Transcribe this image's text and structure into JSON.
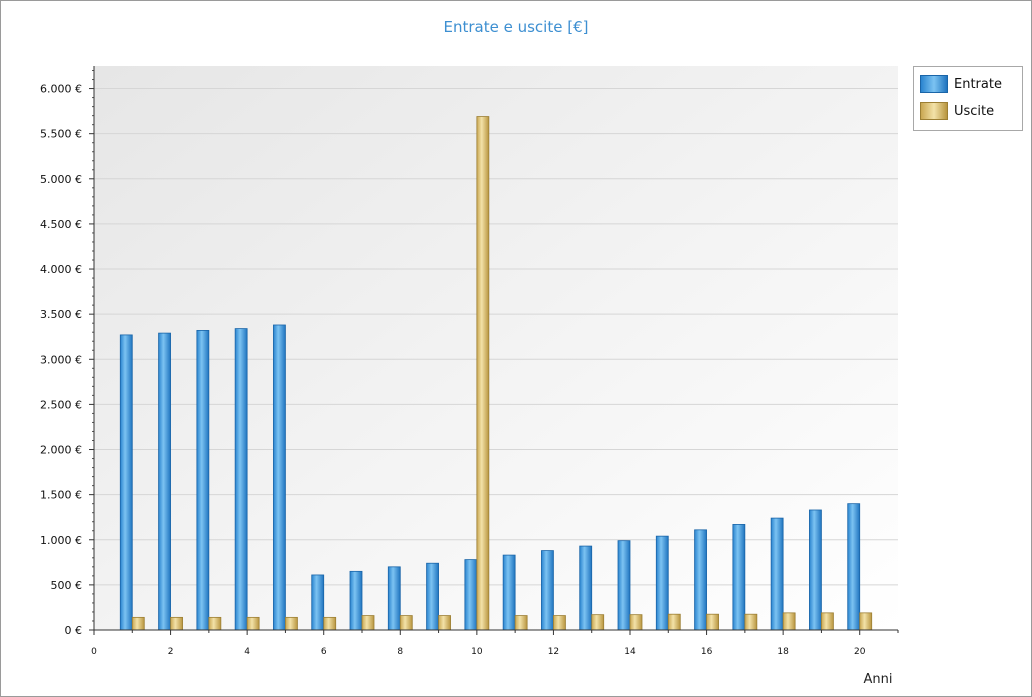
{
  "chart_data": {
    "type": "bar",
    "title": "Entrate e uscite [€]",
    "xlabel": "Anni",
    "ylabel": "",
    "x": [
      1,
      2,
      3,
      4,
      5,
      6,
      7,
      8,
      9,
      10,
      11,
      12,
      13,
      14,
      15,
      16,
      17,
      18,
      19,
      20
    ],
    "xlim": [
      0,
      21
    ],
    "ylim": [
      0,
      6250
    ],
    "x_ticks": [
      0,
      2,
      4,
      6,
      8,
      10,
      12,
      14,
      16,
      18,
      20
    ],
    "y_ticks": [
      0,
      500,
      1000,
      1500,
      2000,
      2500,
      3000,
      3500,
      4000,
      4500,
      5000,
      5500,
      6000
    ],
    "y_tick_labels": [
      "0 €",
      "500 €",
      "1.000 €",
      "1.500 €",
      "2.000 €",
      "2.500 €",
      "3.000 €",
      "3.500 €",
      "4.000 €",
      "4.500 €",
      "5.000 €",
      "5.500 €",
      "6.000 €"
    ],
    "grid": true,
    "legend_position": "top-right",
    "series": [
      {
        "name": "Entrate",
        "color": "#2f8fd8",
        "values": [
          3270,
          3290,
          3320,
          3340,
          3380,
          610,
          650,
          700,
          740,
          780,
          830,
          880,
          930,
          990,
          1040,
          1110,
          1170,
          1240,
          1330,
          1400
        ]
      },
      {
        "name": "Uscite",
        "color": "#d8bc6e",
        "values": [
          140,
          140,
          140,
          140,
          140,
          140,
          160,
          160,
          160,
          5690,
          160,
          160,
          170,
          170,
          175,
          175,
          175,
          190,
          190,
          190
        ]
      }
    ]
  }
}
